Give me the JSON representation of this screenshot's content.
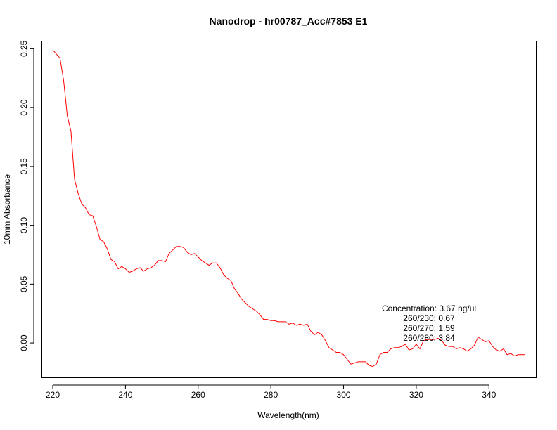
{
  "chart_data": {
    "type": "line",
    "title": "Nanodrop - hr00787_Acc#7853 E1",
    "xlabel": "Wavelength(nm)",
    "ylabel": "10mm Absorbance",
    "xlim": [
      217,
      353
    ],
    "ylim": [
      -0.0295,
      0.2565
    ],
    "xticks": [
      220,
      240,
      260,
      280,
      300,
      320,
      340
    ],
    "yticks": [
      0.0,
      0.05,
      0.1,
      0.15,
      0.2,
      0.25
    ],
    "ytick_labels": [
      "0.00",
      "0.05",
      "0.10",
      "0.15",
      "0.20",
      "0.25"
    ],
    "series": [
      {
        "color": "#ff0000",
        "x": [
          220,
          222,
          223,
          224,
          225,
          226,
          227,
          228,
          229,
          230,
          231,
          232,
          233,
          234,
          235,
          236,
          237,
          238,
          239,
          240,
          241,
          242,
          243,
          244,
          245,
          246,
          247,
          248,
          249,
          250,
          251,
          252,
          253,
          254,
          255,
          256,
          257,
          258,
          259,
          260,
          261,
          262,
          263,
          264,
          265,
          266,
          267,
          268,
          269,
          270,
          271,
          272,
          273,
          274,
          275,
          276,
          277,
          278,
          279,
          280,
          281,
          282,
          283,
          284,
          285,
          286,
          287,
          288,
          289,
          290,
          291,
          292,
          293,
          294,
          295,
          296,
          297,
          298,
          299,
          300,
          301,
          302,
          303,
          304,
          305,
          306,
          307,
          308,
          309,
          310,
          311,
          312,
          313,
          314,
          315,
          316,
          317,
          318,
          319,
          320,
          321,
          322,
          323,
          324,
          325,
          326,
          327,
          328,
          329,
          330,
          331,
          332,
          333,
          334,
          335,
          336,
          337,
          338,
          339,
          340,
          341,
          342,
          343,
          344,
          345,
          346,
          347,
          348,
          349,
          350
        ],
        "values": [
          0.249,
          0.242,
          0.223,
          0.193,
          0.18,
          0.139,
          0.127,
          0.118,
          0.115,
          0.109,
          0.108,
          0.099,
          0.088,
          0.086,
          0.08,
          0.071,
          0.069,
          0.063,
          0.065,
          0.063,
          0.06,
          0.061,
          0.063,
          0.064,
          0.061,
          0.063,
          0.064,
          0.066,
          0.07,
          0.07,
          0.069,
          0.076,
          0.079,
          0.082,
          0.082,
          0.081,
          0.077,
          0.075,
          0.076,
          0.073,
          0.07,
          0.068,
          0.066,
          0.068,
          0.068,
          0.064,
          0.058,
          0.055,
          0.053,
          0.046,
          0.042,
          0.037,
          0.034,
          0.031,
          0.029,
          0.027,
          0.024,
          0.02,
          0.02,
          0.019,
          0.019,
          0.018,
          0.018,
          0.018,
          0.016,
          0.017,
          0.015,
          0.016,
          0.015,
          0.016,
          0.01,
          0.007,
          0.009,
          0.007,
          0.002,
          -0.004,
          -0.006,
          -0.008,
          -0.008,
          -0.01,
          -0.014,
          -0.018,
          -0.017,
          -0.016,
          -0.016,
          -0.016,
          -0.019,
          -0.02,
          -0.018,
          -0.01,
          -0.008,
          -0.008,
          -0.005,
          -0.004,
          -0.004,
          -0.003,
          -0.001,
          -0.006,
          -0.005,
          -0.001,
          -0.005,
          0.002,
          0.003,
          0.003,
          0.003,
          0.004,
          0.002,
          -0.002,
          -0.003,
          -0.003,
          -0.005,
          -0.004,
          -0.005,
          -0.007,
          -0.005,
          -0.002,
          0.005,
          0.003,
          0.001,
          0.002,
          -0.003,
          -0.006,
          -0.007,
          -0.005,
          -0.01,
          -0.009,
          -0.011,
          -0.01,
          -0.01,
          -0.01
        ]
      }
    ],
    "annotations": [
      "Concentration: 3.67 ng/ul",
      "260/230: 0.67",
      "260/270: 1.59",
      "260/280: 3.84"
    ],
    "grid": false,
    "legend": "none"
  }
}
